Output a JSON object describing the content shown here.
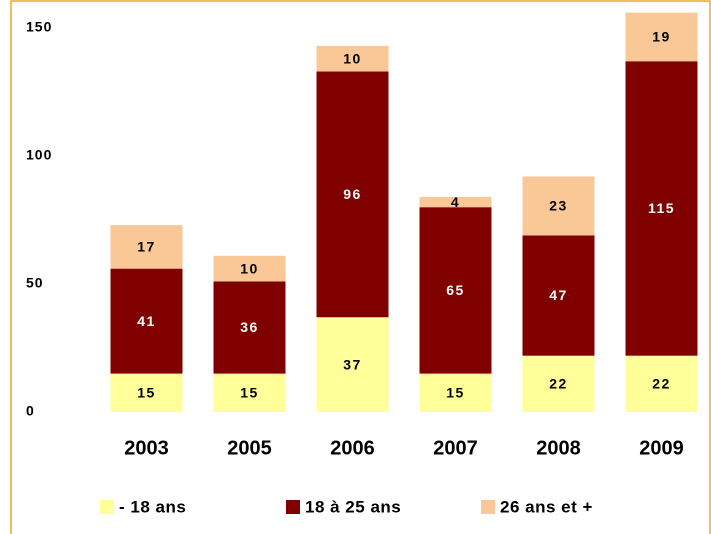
{
  "chart_data": {
    "type": "stacked_bar",
    "categories": [
      "2003",
      "2005",
      "2006",
      "2007",
      "2008",
      "2009"
    ],
    "series": [
      {
        "name": "- 18 ans",
        "color": "#ffff99",
        "values": [
          15,
          15,
          37,
          15,
          22,
          22
        ]
      },
      {
        "name": "18 à 25 ans",
        "color": "#800000",
        "values": [
          41,
          36,
          96,
          65,
          47,
          115
        ]
      },
      {
        "name": "26 ans et +",
        "color": "#fac896",
        "values": [
          17,
          10,
          10,
          4,
          23,
          19
        ]
      }
    ],
    "ylim": [
      0,
      150
    ],
    "yticks": [
      0,
      50,
      100,
      150
    ],
    "grid": false,
    "legend": "bottom"
  }
}
